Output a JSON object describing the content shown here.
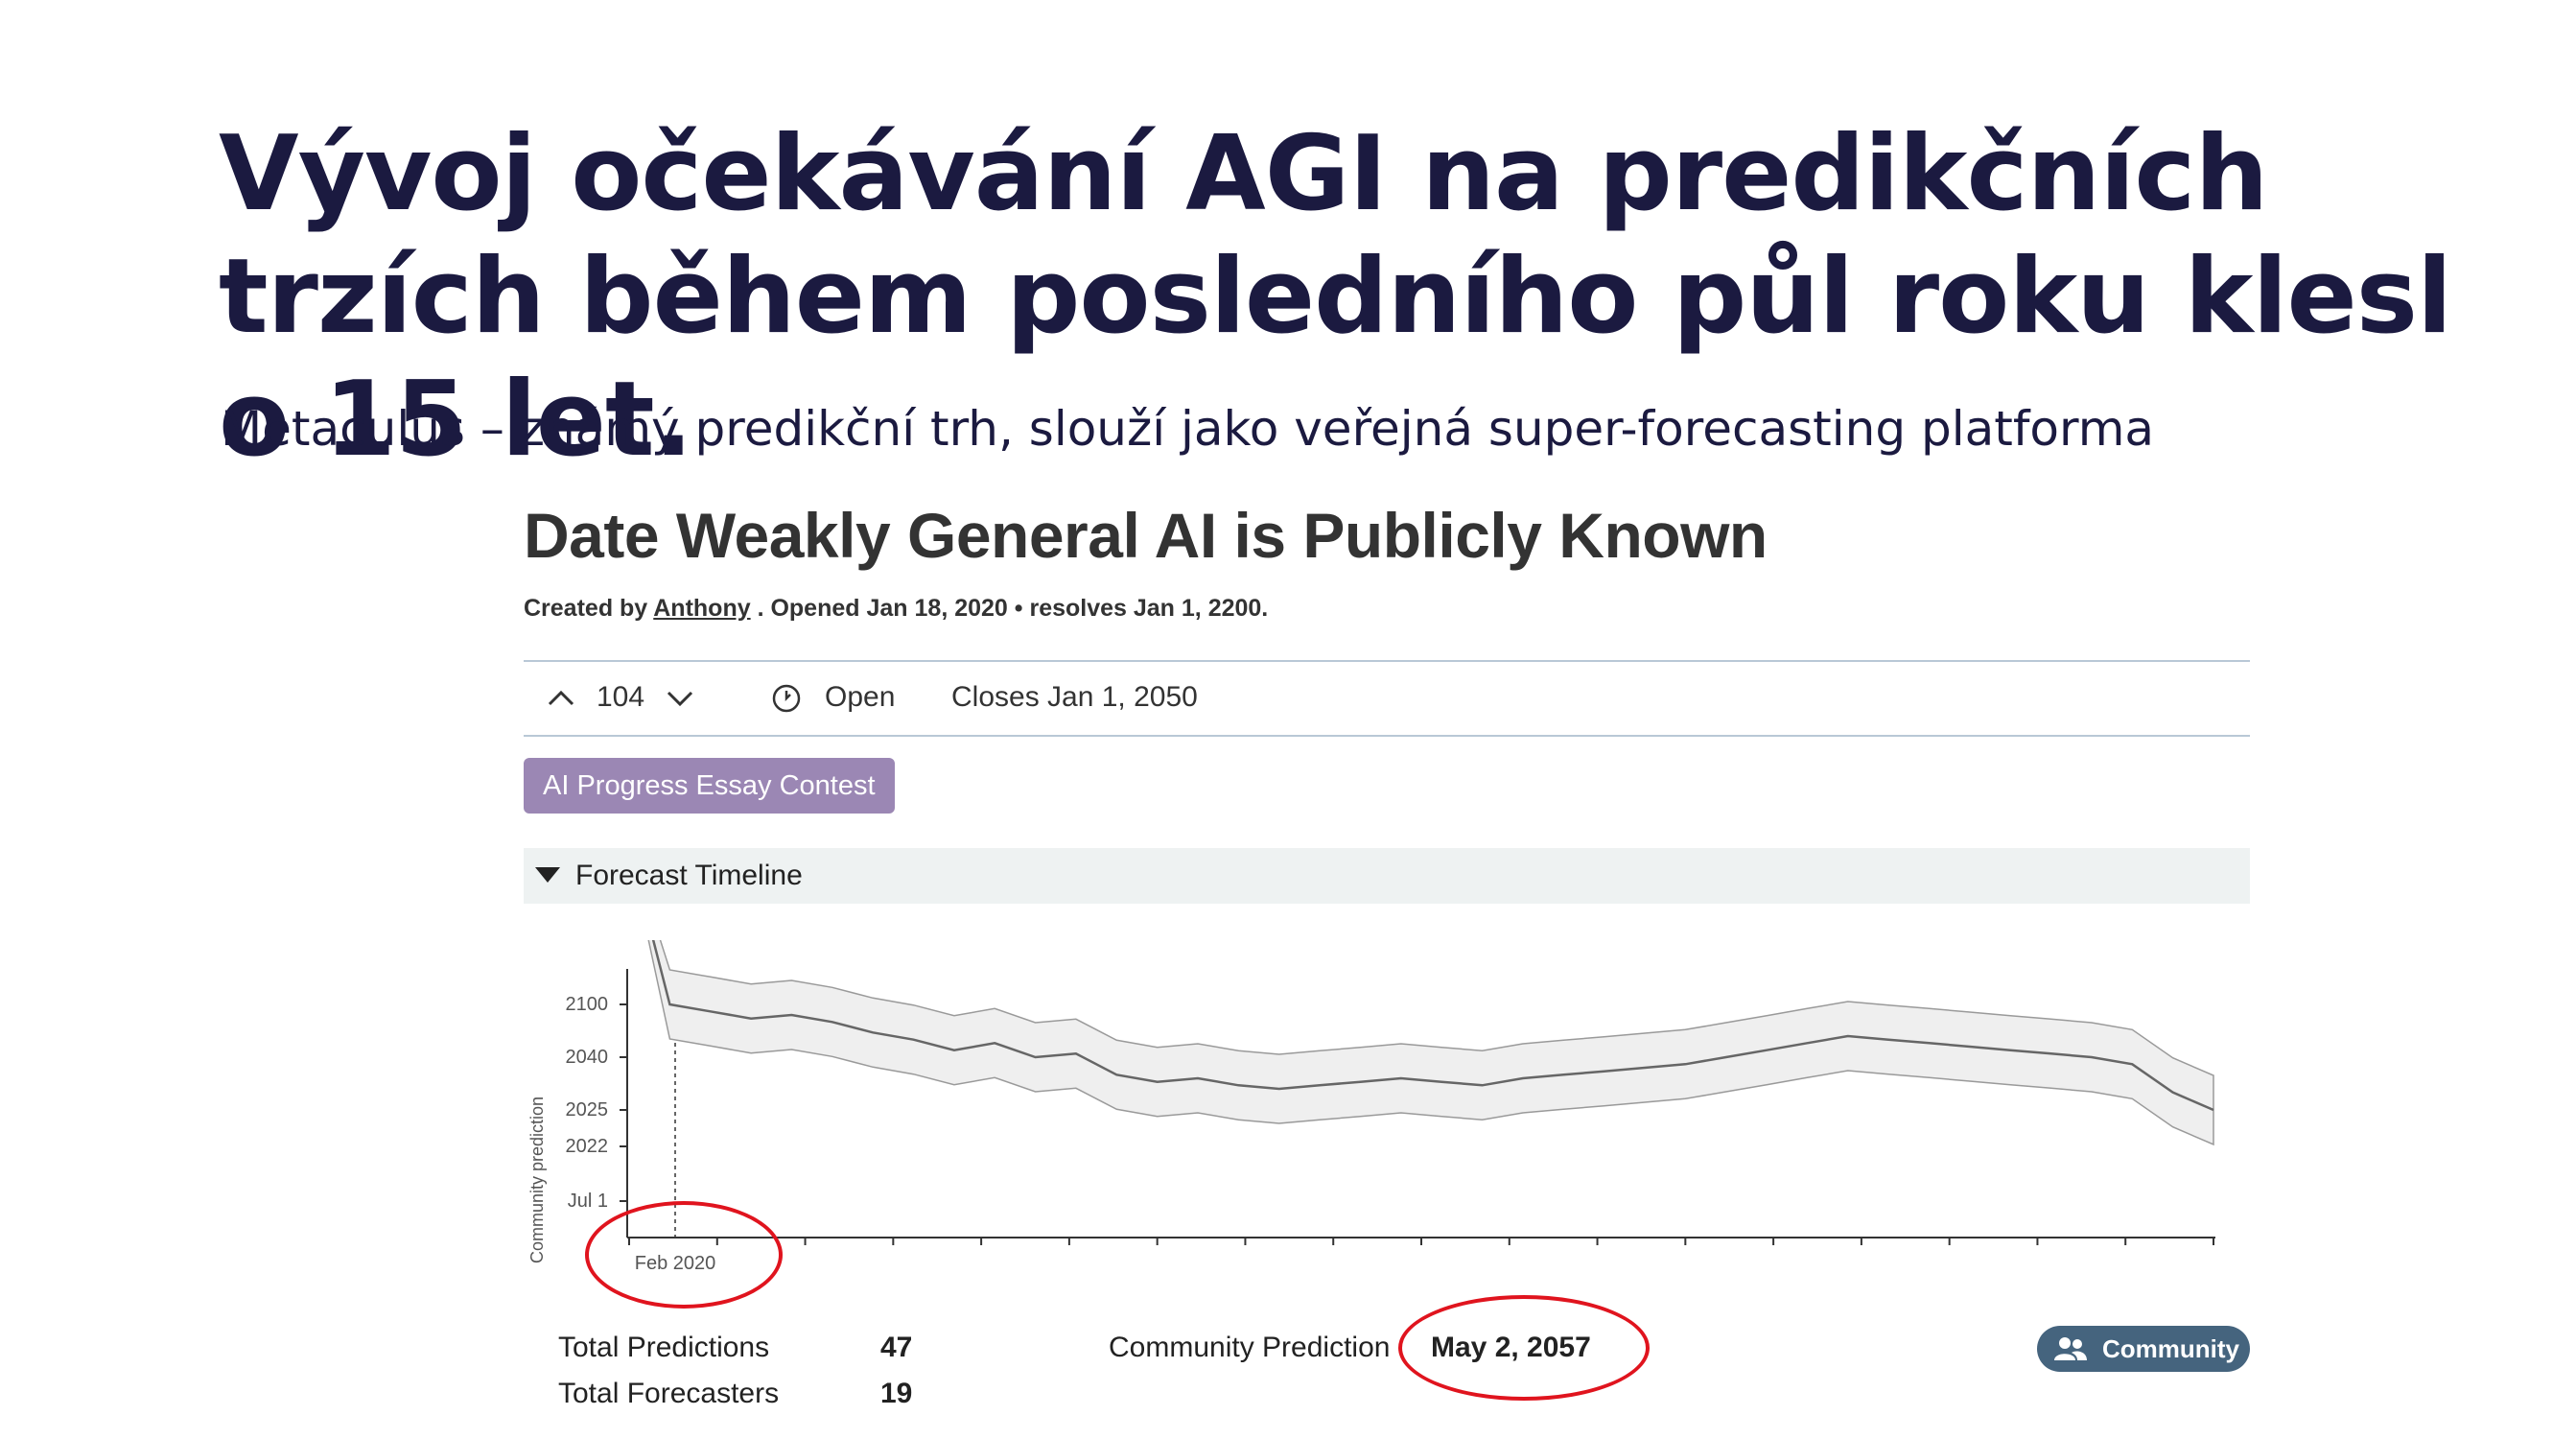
{
  "slide": {
    "title": "Vývoj očekávání AGI na predikčních trzích během posledního půl roku klesl o 15 let.",
    "subtitle": "Metaculus – známý predikční trh, slouží jako veřejná super-forecasting platforma"
  },
  "question": {
    "title": "Date Weakly General AI is Publicly Known",
    "created_prefix": "Created by",
    "author": "Anthony",
    "created_suffix": ". Opened Jan 18, 2020 • resolves Jan 1, 2200.",
    "votes": "104",
    "status": "Open",
    "closes": "Closes Jan 1, 2050",
    "tag": "AI Progress Essay Contest",
    "timeline_label": "Forecast Timeline"
  },
  "chart_data": {
    "type": "line",
    "ylabel": "Community prediction",
    "y_ticks": [
      "2100",
      "2040",
      "2025",
      "2022",
      "Jul 1"
    ],
    "x_ticks": [
      "Feb 2020"
    ],
    "series": [
      {
        "median": [
          2100,
          2055,
          2053,
          2051,
          2052,
          2050,
          2047,
          2045,
          2042,
          2044,
          2040,
          2041,
          2035,
          2033,
          2034,
          2032,
          2031,
          2032,
          2033,
          2034,
          2033,
          2032,
          2034,
          2035,
          2036,
          2037,
          2038,
          2040,
          2042,
          2044,
          2046,
          2045,
          2044,
          2043,
          2042,
          2041,
          2040,
          2038,
          2030,
          2025
        ]
      }
    ]
  },
  "stats": {
    "total_predictions_label": "Total Predictions",
    "total_predictions": "47",
    "total_forecasters_label": "Total Forecasters",
    "total_forecasters": "19",
    "community_prediction_label": "Community Prediction",
    "community_prediction": "May 2, 2057",
    "community_button": "Community"
  },
  "colors": {
    "title": "#1b1a40",
    "tag": "#9b87b4",
    "button": "#45647e",
    "highlight": "#e0141e"
  }
}
